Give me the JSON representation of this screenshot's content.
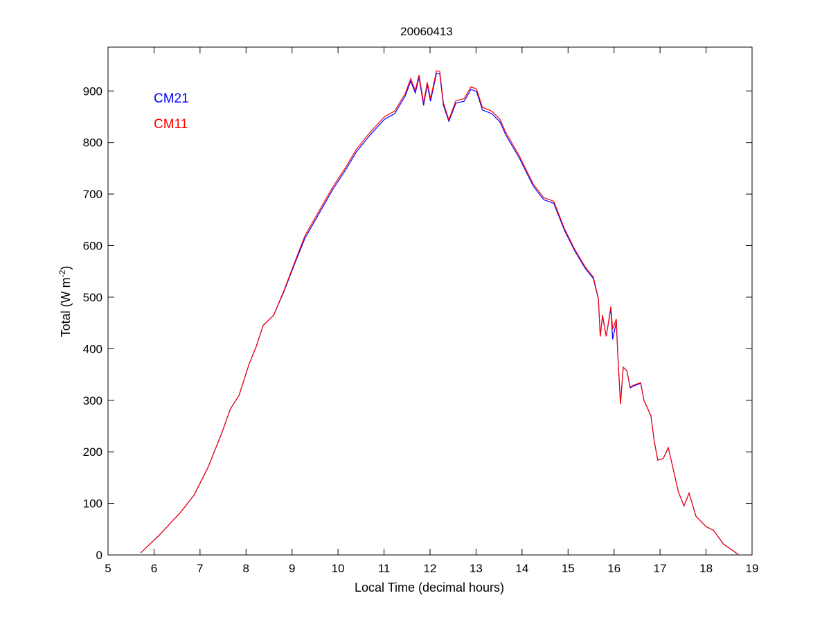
{
  "chart_data": {
    "type": "line",
    "title": "20060413",
    "xlabel": "Local Time (decimal hours)",
    "ylabel": "Total (W m^-2)",
    "xlim": [
      5,
      19
    ],
    "ylim": [
      0,
      985
    ],
    "xticks": [
      5,
      6,
      7,
      8,
      9,
      10,
      11,
      12,
      13,
      14,
      15,
      16,
      17,
      18,
      19
    ],
    "yticks": [
      0,
      100,
      200,
      300,
      400,
      500,
      600,
      700,
      800,
      900
    ],
    "grid": false,
    "legend_placement": "top-left",
    "x": [
      5.71,
      6.11,
      6.57,
      6.87,
      7.17,
      7.47,
      7.66,
      7.85,
      8.07,
      8.22,
      8.37,
      8.6,
      8.82,
      9.05,
      9.28,
      9.58,
      9.88,
      10.18,
      10.4,
      10.71,
      11.01,
      11.23,
      11.46,
      11.58,
      11.68,
      11.76,
      11.86,
      11.94,
      12.01,
      12.14,
      12.21,
      12.29,
      12.41,
      12.56,
      12.74,
      12.89,
      13.01,
      13.14,
      13.34,
      13.52,
      13.64,
      13.94,
      14.24,
      14.47,
      14.69,
      14.92,
      15.15,
      15.37,
      15.55,
      15.66,
      15.7,
      15.75,
      15.83,
      15.93,
      15.97,
      16.05,
      16.08,
      16.14,
      16.2,
      16.28,
      16.35,
      16.44,
      16.58,
      16.65,
      16.8,
      16.87,
      16.95,
      17.07,
      17.18,
      17.28,
      17.4,
      17.52,
      17.63,
      17.78,
      18.0,
      18.16,
      18.38,
      18.7
    ],
    "series": [
      {
        "name": "CM21",
        "color": "#0000ff",
        "values": [
          4,
          38,
          82,
          116,
          169,
          236,
          283,
          310,
          371,
          404,
          445,
          465,
          510,
          563,
          614,
          661,
          708,
          749,
          782,
          816,
          845,
          856,
          890,
          919,
          896,
          926,
          872,
          912,
          880,
          934,
          933,
          872,
          841,
          876,
          880,
          903,
          899,
          863,
          856,
          840,
          816,
          770,
          716,
          689,
          682,
          630,
          589,
          556,
          536,
          496,
          424,
          463,
          424,
          478,
          418,
          452,
          391,
          293,
          364,
          357,
          324,
          328,
          333,
          300,
          270,
          223,
          184,
          187,
          208,
          169,
          122,
          95,
          120,
          75,
          55,
          48,
          21,
          1
        ]
      },
      {
        "name": "CM11",
        "color": "#ff0000",
        "values": [
          4,
          38,
          82,
          116,
          169,
          236,
          283,
          310,
          371,
          404,
          445,
          465,
          512,
          566,
          619,
          666,
          713,
          754,
          787,
          821,
          850,
          861,
          895,
          924,
          901,
          931,
          877,
          917,
          885,
          939,
          938,
          877,
          844,
          881,
          885,
          908,
          904,
          868,
          861,
          845,
          821,
          774,
          720,
          693,
          686,
          633,
          592,
          559,
          539,
          498,
          424,
          465,
          424,
          482,
          438,
          458,
          391,
          293,
          364,
          357,
          326,
          330,
          334,
          300,
          270,
          223,
          184,
          187,
          208,
          169,
          122,
          95,
          120,
          75,
          55,
          48,
          21,
          1
        ]
      }
    ]
  },
  "labels": {
    "ylabel_main": "Total (W m",
    "ylabel_sup": "-2",
    "ylabel_end": ")"
  }
}
